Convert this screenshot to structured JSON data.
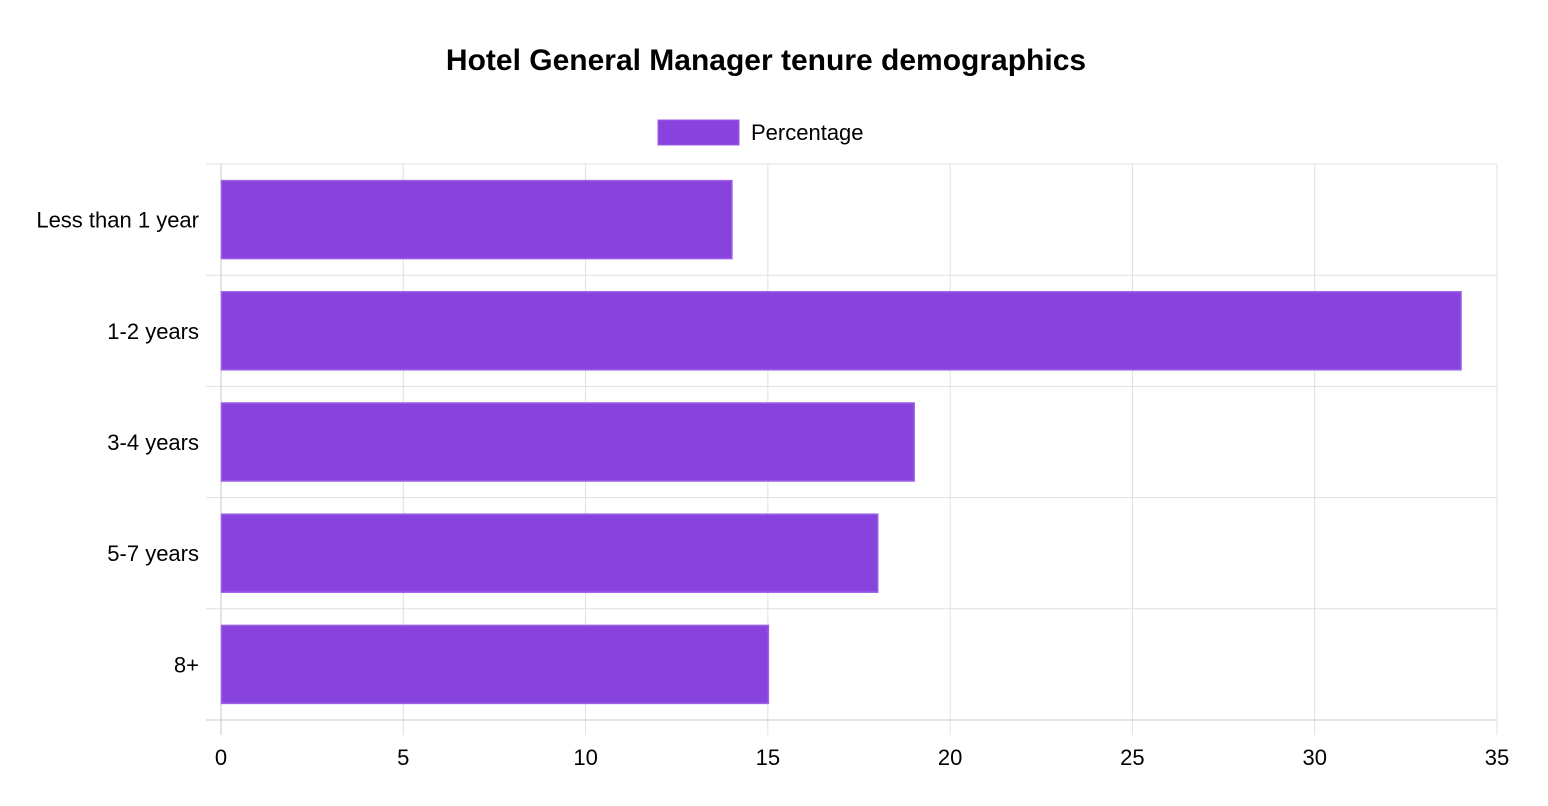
{
  "chart_data": {
    "type": "bar",
    "orientation": "horizontal",
    "title": "Hotel General Manager tenure demographics",
    "categories": [
      "Less than 1 year",
      "1-2 years",
      "3-4 years",
      "5-7 years",
      "8+"
    ],
    "series": [
      {
        "name": "Percentage",
        "values": [
          14,
          34,
          19,
          18,
          15
        ],
        "color": "#8842dd"
      }
    ],
    "xlim": [
      0,
      35
    ],
    "x_ticks": [
      "0",
      "5",
      "10",
      "15",
      "20",
      "25",
      "30",
      "35"
    ],
    "xlabel": "",
    "ylabel": "",
    "grid": true,
    "legend_position": "top-center"
  },
  "colors": {
    "bar_fill": "#8842dd",
    "bar_border": "#9b5fe6",
    "grid": "#e0e0e0",
    "axis": "#c8c8c8"
  }
}
